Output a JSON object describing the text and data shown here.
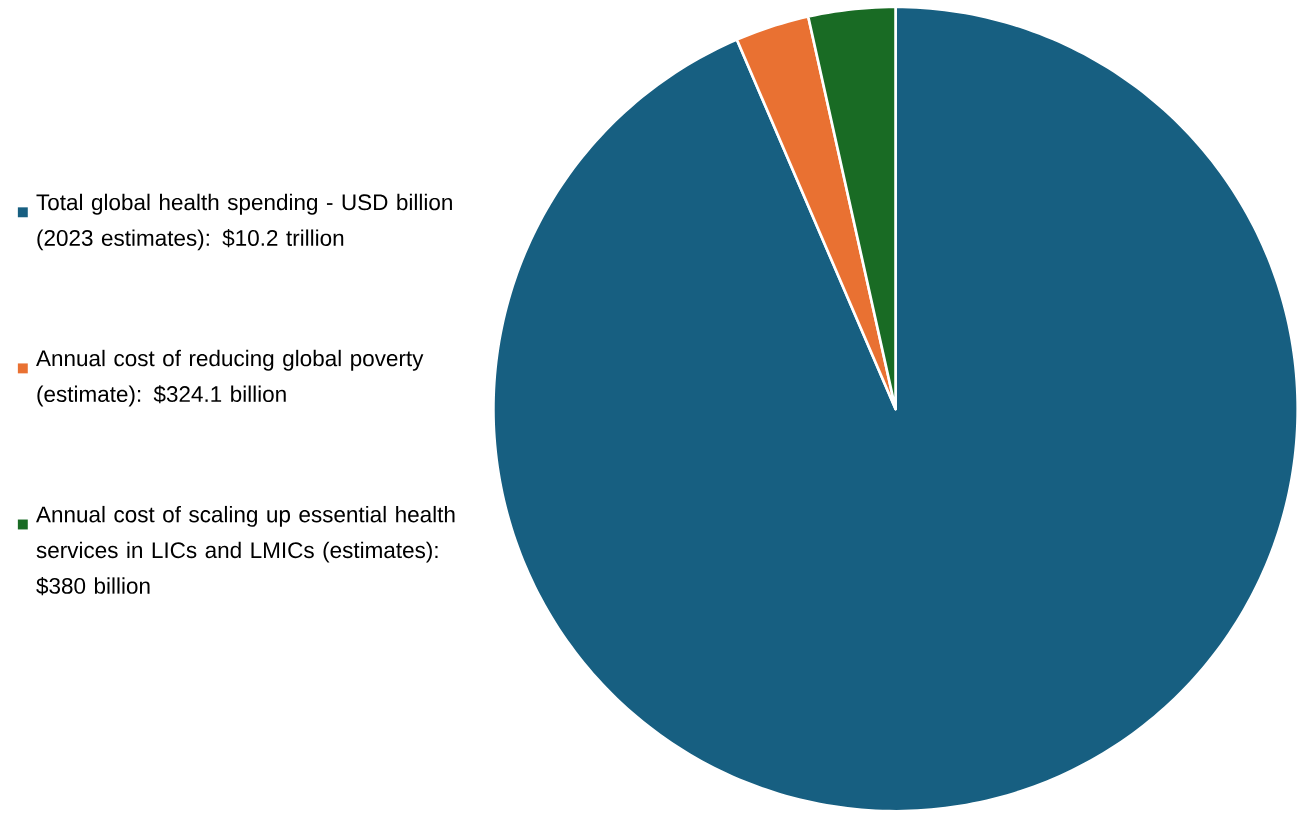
{
  "chart_data": {
    "type": "pie",
    "categories": [
      "Total global health spending - USD billion (2023 estimates): $10.2 trillion",
      "Annual cost of reducing global poverty (estimate): $324.1 billion",
      "Annual cost of scaling up essential health services in LICs and LMICs (estimates): $380 billion"
    ],
    "values": [
      10200,
      324.1,
      380
    ],
    "colors": [
      "#175f81",
      "#e97132",
      "#196b24"
    ],
    "legend": "left"
  }
}
